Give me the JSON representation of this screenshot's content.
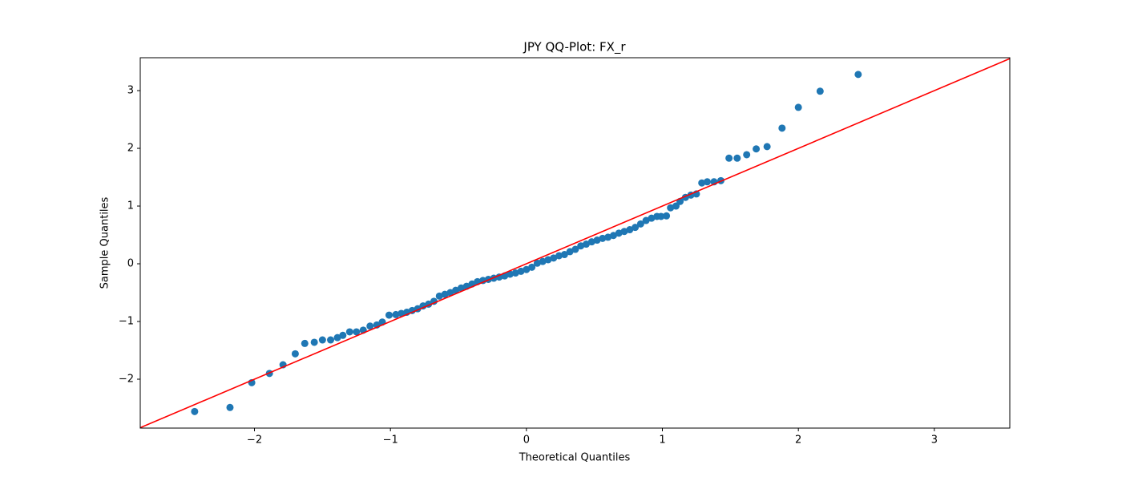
{
  "chart_data": {
    "type": "scatter",
    "title": "JPY QQ-Plot: FX_r",
    "x_label": "Theoretical Quantiles",
    "y_label": "Sample Quantiles",
    "color": "#1f77b4",
    "reference_line": {
      "color": "#ff0000",
      "slope": 1,
      "intercept": 0
    },
    "xlim": [
      -2.84,
      3.555
    ],
    "ylim": [
      -2.847,
      3.57
    ],
    "xticks": [
      {
        "value": -2,
        "label": "−2"
      },
      {
        "value": -1,
        "label": "−1"
      },
      0,
      1,
      2,
      3
    ],
    "yticks": [
      {
        "value": -2,
        "label": "−2"
      },
      {
        "value": -1,
        "label": "−1"
      },
      0,
      1,
      2,
      3
    ],
    "x": [
      -2.44,
      -2.18,
      -2.02,
      -1.89,
      -1.79,
      -1.7,
      -1.63,
      -1.56,
      -1.5,
      -1.44,
      -1.39,
      -1.35,
      -1.3,
      -1.25,
      -1.2,
      -1.15,
      -1.1,
      -1.06,
      -1.01,
      -0.96,
      -0.92,
      -0.88,
      -0.84,
      -0.8,
      -0.76,
      -0.72,
      -0.68,
      -0.64,
      -0.6,
      -0.56,
      -0.52,
      -0.48,
      -0.44,
      -0.4,
      -0.36,
      -0.32,
      -0.28,
      -0.24,
      -0.2,
      -0.16,
      -0.12,
      -0.08,
      -0.04,
      0.0,
      0.04,
      0.08,
      0.12,
      0.16,
      0.2,
      0.24,
      0.28,
      0.32,
      0.36,
      0.4,
      0.44,
      0.48,
      0.52,
      0.56,
      0.6,
      0.64,
      0.68,
      0.72,
      0.76,
      0.8,
      0.84,
      0.88,
      0.92,
      0.96,
      0.99,
      1.03,
      1.06,
      1.1,
      1.13,
      1.17,
      1.21,
      1.25,
      1.29,
      1.33,
      1.38,
      1.43,
      1.49,
      1.55,
      1.62,
      1.69,
      1.77,
      1.88,
      2.0,
      2.16,
      2.44
    ],
    "values": [
      -2.56,
      -2.49,
      -2.06,
      -1.9,
      -1.75,
      -1.56,
      -1.38,
      -1.36,
      -1.32,
      -1.32,
      -1.28,
      -1.24,
      -1.18,
      -1.18,
      -1.15,
      -1.08,
      -1.06,
      -1.01,
      -0.89,
      -0.88,
      -0.86,
      -0.84,
      -0.81,
      -0.78,
      -0.73,
      -0.7,
      -0.65,
      -0.56,
      -0.53,
      -0.5,
      -0.46,
      -0.42,
      -0.39,
      -0.35,
      -0.31,
      -0.29,
      -0.27,
      -0.25,
      -0.23,
      -0.21,
      -0.18,
      -0.16,
      -0.13,
      -0.1,
      -0.06,
      0.01,
      0.04,
      0.07,
      0.1,
      0.14,
      0.16,
      0.21,
      0.25,
      0.31,
      0.34,
      0.38,
      0.41,
      0.44,
      0.46,
      0.49,
      0.53,
      0.56,
      0.59,
      0.63,
      0.69,
      0.75,
      0.79,
      0.82,
      0.82,
      0.83,
      0.97,
      1.0,
      1.08,
      1.15,
      1.19,
      1.21,
      1.4,
      1.42,
      1.42,
      1.44,
      1.83,
      1.83,
      1.89,
      1.99,
      2.03,
      2.35,
      2.71,
      2.99,
      3.28
    ]
  }
}
